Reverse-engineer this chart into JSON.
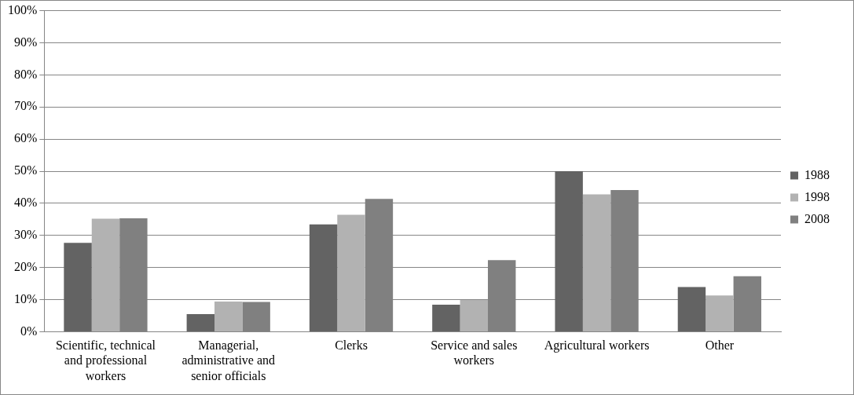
{
  "chart_data": {
    "type": "bar",
    "categories": [
      "Scientific, technical and professional workers",
      "Managerial, administrative and senior officials",
      "Clerks",
      "Service and sales workers",
      "Agricultural workers",
      "Other"
    ],
    "series": [
      {
        "name": "1988",
        "color": "#636363",
        "values": [
          27.7,
          5.5,
          33.4,
          8.4,
          50,
          13.9
        ]
      },
      {
        "name": "1998",
        "color": "#b2b2b2",
        "values": [
          35.2,
          9.4,
          36.4,
          9.9,
          42.8,
          11.3
        ]
      },
      {
        "name": "2008",
        "color": "#808080",
        "values": [
          35.3,
          9.3,
          41.4,
          22.3,
          44.1,
          17.3
        ]
      }
    ],
    "ylim": [
      0,
      100
    ],
    "yticks": [
      {
        "value": 0,
        "label": "0%"
      },
      {
        "value": 10,
        "label": "10%"
      },
      {
        "value": 20,
        "label": "20%"
      },
      {
        "value": 30,
        "label": "30%"
      },
      {
        "value": 40,
        "label": "40%"
      },
      {
        "value": 50,
        "label": "50%"
      },
      {
        "value": 60,
        "label": "60%"
      },
      {
        "value": 70,
        "label": "70%"
      },
      {
        "value": 80,
        "label": "80%"
      },
      {
        "value": 90,
        "label": "90%"
      },
      {
        "value": 100,
        "label": "100%"
      }
    ],
    "grid": "y",
    "legend": "right"
  }
}
